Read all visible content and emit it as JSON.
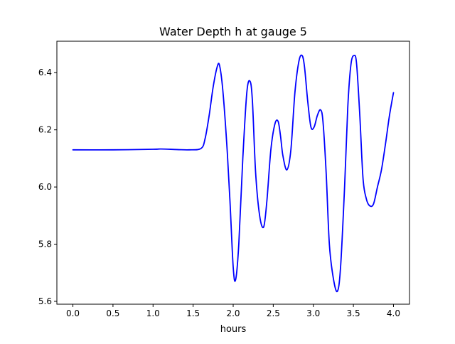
{
  "chart_data": {
    "type": "line",
    "title": "Water Depth h at gauge 5",
    "xlabel": "hours",
    "ylabel": "",
    "xlim": [
      -0.2,
      4.2
    ],
    "ylim": [
      5.59,
      6.51
    ],
    "x_ticks": [
      0.0,
      0.5,
      1.0,
      1.5,
      2.0,
      2.5,
      3.0,
      3.5,
      4.0
    ],
    "x_tick_labels": [
      "0.0",
      "0.5",
      "1.0",
      "1.5",
      "2.0",
      "2.5",
      "3.0",
      "3.5",
      "4.0"
    ],
    "y_ticks": [
      5.6,
      5.8,
      6.0,
      6.2,
      6.4
    ],
    "y_tick_labels": [
      "5.6",
      "5.8",
      "6.0",
      "6.2",
      "6.4"
    ],
    "grid": false,
    "legend": "none",
    "series": [
      {
        "color": "#0000ff",
        "x": [
          0.0,
          0.5,
          1.0,
          1.1,
          1.3,
          1.45,
          1.6,
          1.65,
          1.7,
          1.75,
          1.8,
          1.83,
          1.87,
          1.92,
          1.96,
          2.0,
          2.03,
          2.07,
          2.12,
          2.17,
          2.21,
          2.24,
          2.28,
          2.33,
          2.38,
          2.42,
          2.47,
          2.52,
          2.56,
          2.59,
          2.62,
          2.67,
          2.72,
          2.77,
          2.82,
          2.86,
          2.89,
          2.93,
          2.97,
          3.01,
          3.05,
          3.09,
          3.12,
          3.16,
          3.2,
          3.25,
          3.3,
          3.34,
          3.39,
          3.43,
          3.47,
          3.51,
          3.54,
          3.58,
          3.62,
          3.66,
          3.7,
          3.75,
          3.8,
          3.85,
          3.9,
          3.95,
          4.0
        ],
        "y": [
          6.13,
          6.13,
          6.132,
          6.133,
          6.131,
          6.13,
          6.135,
          6.17,
          6.25,
          6.35,
          6.42,
          6.425,
          6.34,
          6.15,
          5.95,
          5.72,
          5.675,
          5.8,
          6.1,
          6.33,
          6.37,
          6.3,
          6.05,
          5.9,
          5.86,
          5.95,
          6.13,
          6.22,
          6.23,
          6.18,
          6.11,
          6.06,
          6.13,
          6.33,
          6.44,
          6.46,
          6.42,
          6.3,
          6.21,
          6.21,
          6.25,
          6.27,
          6.23,
          6.05,
          5.8,
          5.68,
          5.635,
          5.72,
          6.0,
          6.28,
          6.43,
          6.46,
          6.43,
          6.25,
          6.03,
          5.96,
          5.935,
          5.94,
          6.0,
          6.06,
          6.15,
          6.25,
          6.33
        ]
      }
    ]
  }
}
